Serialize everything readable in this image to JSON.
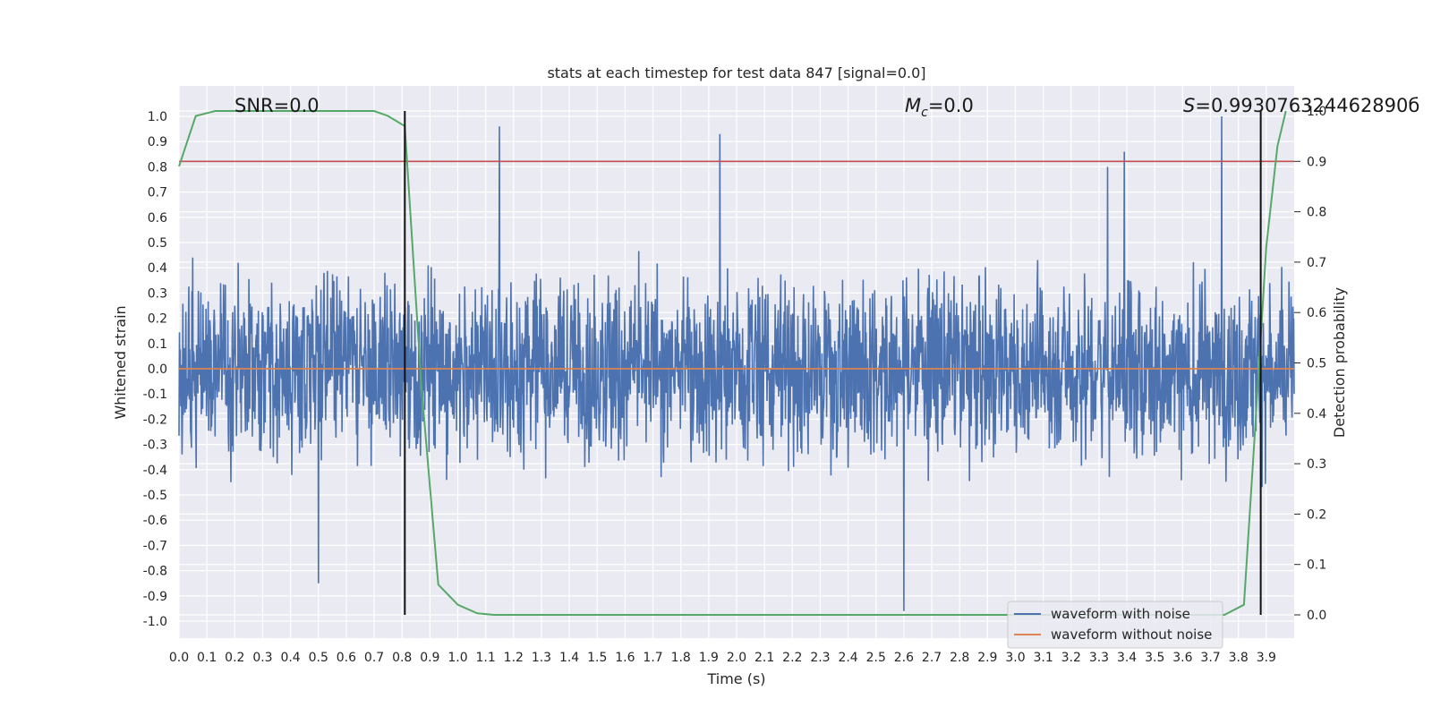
{
  "chart_data": {
    "type": "line",
    "title": "stats at each timestep for test data 847 [signal=0.0]",
    "xlabel": "Time (s)",
    "ylabel": "Whitened strain",
    "y2label": "Detection probability",
    "xlim": [
      0.0,
      4.0
    ],
    "ylim": [
      -1.1,
      1.1
    ],
    "y2lim": [
      -0.05,
      1.0
    ],
    "xticks": [
      "0.0",
      "0.1",
      "0.2",
      "0.3",
      "0.4",
      "0.5",
      "0.6",
      "0.7",
      "0.8",
      "0.9",
      "1.0",
      "1.1",
      "1.2",
      "1.3",
      "1.4",
      "1.5",
      "1.6",
      "1.7",
      "1.8",
      "1.9",
      "2.0",
      "2.1",
      "2.2",
      "2.3",
      "2.4",
      "2.5",
      "2.6",
      "2.7",
      "2.8",
      "2.9",
      "3.0",
      "3.1",
      "3.2",
      "3.3",
      "3.4",
      "3.5",
      "3.6",
      "3.7",
      "3.8",
      "3.9"
    ],
    "yticks": [
      "1.0",
      "0.9",
      "0.8",
      "0.7",
      "0.6",
      "0.5",
      "0.4",
      "0.3",
      "0.2",
      "0.1",
      "0.0",
      "-0.1",
      "-0.2",
      "-0.3",
      "-0.4",
      "-0.5",
      "-0.6",
      "-0.7",
      "-0.8",
      "-0.9",
      "-1.0"
    ],
    "y2ticks": [
      "1.0",
      "0.9",
      "0.8",
      "0.7",
      "0.6",
      "0.5",
      "0.4",
      "0.3",
      "0.2",
      "0.1",
      "0.0"
    ],
    "annotations": {
      "snr": "SNR=0.0",
      "mc_symbol": "M",
      "mc_sub": "c",
      "mc_value": "=0.0",
      "s_symbol": "S",
      "s_value": "=0.993076324462890б"
    },
    "legend": {
      "placement": "lower-right",
      "entries": [
        "waveform with noise",
        "waveform without noise"
      ]
    },
    "threshold": 0.9,
    "vlines": [
      0.81,
      3.88
    ],
    "series": [
      {
        "name": "waveform with noise",
        "color": "#4c72b0",
        "kind": "noise",
        "amplitude_range": [
          -1.0,
          1.0
        ],
        "notable_peaks": [
          [
            0.5,
            -0.85
          ],
          [
            1.15,
            0.96
          ],
          [
            1.94,
            0.93
          ],
          [
            2.6,
            -0.96
          ],
          [
            3.74,
            1.0
          ],
          [
            3.33,
            0.8
          ],
          [
            3.39,
            0.86
          ]
        ]
      },
      {
        "name": "waveform without noise",
        "color": "#dd8452",
        "x": [
          0.0,
          4.0
        ],
        "y": [
          0.0,
          0.0
        ]
      },
      {
        "name": "",
        "color": "#55a868",
        "axis": "y2",
        "x": [
          0.0,
          0.06,
          0.13,
          0.2,
          0.3,
          0.4,
          0.5,
          0.6,
          0.7,
          0.75,
          0.81,
          0.87,
          0.93,
          1.0,
          1.07,
          1.13,
          1.5,
          2.0,
          2.5,
          3.0,
          3.5,
          3.75,
          3.82,
          3.86,
          3.9,
          3.94,
          3.97
        ],
        "y": [
          0.89,
          0.99,
          1.0,
          1.0,
          1.0,
          1.0,
          1.0,
          1.0,
          1.0,
          0.99,
          0.97,
          0.45,
          0.06,
          0.02,
          0.003,
          0.0,
          0.0,
          0.0,
          0.0,
          0.0,
          0.0,
          0.0,
          0.02,
          0.37,
          0.73,
          0.93,
          1.0
        ]
      },
      {
        "name": "",
        "color": "#c44e52",
        "axis": "y2",
        "x": [
          0.0,
          4.0
        ],
        "y": [
          0.9,
          0.9
        ]
      }
    ]
  }
}
